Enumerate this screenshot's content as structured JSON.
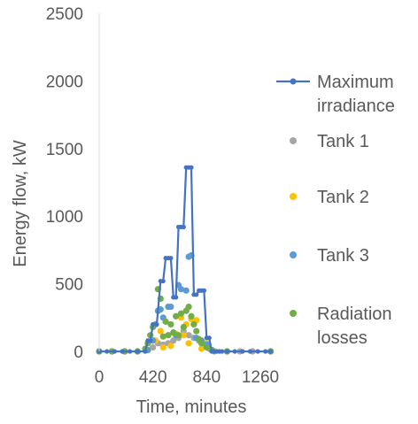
{
  "chart_data": {
    "type": "scatter",
    "title": "",
    "xlabel": "Time, minutes",
    "ylabel": "Energy flow, kW",
    "xlim": [
      0,
      1440
    ],
    "ylim": [
      0,
      2500
    ],
    "xticks": [
      0,
      420,
      840,
      1260
    ],
    "yticks": [
      0,
      500,
      1000,
      1500,
      2000,
      2500
    ],
    "x_tick_labels": [
      "0",
      "420",
      "840",
      "1260"
    ],
    "y_tick_labels": [
      "0",
      "500",
      "1000",
      "1500",
      "2000",
      "2500"
    ],
    "grid": false,
    "legend_position": "right",
    "series": [
      {
        "name": "Maximum irradiance",
        "marker": "line-with-markers",
        "color": "#4472C4",
        "x": [
          0,
          60,
          120,
          180,
          240,
          300,
          360,
          380,
          400,
          420,
          450,
          480,
          500,
          520,
          540,
          560,
          580,
          600,
          620,
          640,
          660,
          680,
          700,
          720,
          740,
          760,
          780,
          800,
          820,
          840,
          860,
          880,
          900,
          920,
          940,
          960,
          1000,
          1060,
          1120,
          1180,
          1240,
          1300,
          1340
        ],
        "y": [
          0,
          0,
          0,
          0,
          0,
          0,
          0,
          80,
          80,
          200,
          200,
          520,
          520,
          690,
          690,
          690,
          400,
          400,
          920,
          920,
          920,
          1360,
          1360,
          1360,
          420,
          420,
          450,
          450,
          450,
          100,
          100,
          0,
          0,
          0,
          0,
          0,
          0,
          0,
          0,
          0,
          0,
          0,
          0
        ]
      },
      {
        "name": "Tank 1",
        "marker": "circle",
        "color": "#A5A5A5",
        "x": [
          0,
          100,
          200,
          300,
          380,
          420,
          460,
          500,
          540,
          580,
          620,
          660,
          700,
          740,
          780,
          820,
          860,
          900,
          1000,
          1100,
          1200,
          1340
        ],
        "y": [
          0,
          0,
          0,
          0,
          10,
          30,
          60,
          50,
          60,
          80,
          100,
          150,
          120,
          100,
          80,
          60,
          20,
          0,
          0,
          0,
          0,
          0
        ]
      },
      {
        "name": "Tank 2",
        "marker": "circle",
        "color": "#FFC000",
        "x": [
          0,
          100,
          200,
          300,
          380,
          440,
          480,
          500,
          540,
          560,
          600,
          640,
          660,
          680,
          700,
          720,
          760,
          780,
          800,
          840,
          880,
          1000,
          1340
        ],
        "y": [
          0,
          0,
          0,
          0,
          10,
          80,
          150,
          30,
          120,
          40,
          130,
          250,
          120,
          200,
          60,
          240,
          230,
          90,
          20,
          60,
          10,
          0,
          0
        ]
      },
      {
        "name": "Tank 3",
        "marker": "circle",
        "color": "#5B9BD5",
        "x": [
          0,
          100,
          200,
          300,
          380,
          420,
          460,
          480,
          500,
          540,
          560,
          600,
          620,
          640,
          680,
          700,
          720,
          760,
          800,
          840,
          880,
          1000,
          1340
        ],
        "y": [
          0,
          0,
          0,
          0,
          10,
          80,
          300,
          310,
          250,
          330,
          330,
          120,
          490,
          460,
          450,
          700,
          710,
          100,
          80,
          50,
          10,
          0,
          0
        ]
      },
      {
        "name": "Radiation losses",
        "marker": "circle",
        "color": "#70AD47",
        "x": [
          0,
          100,
          200,
          300,
          360,
          380,
          400,
          420,
          440,
          460,
          480,
          500,
          520,
          540,
          560,
          580,
          600,
          620,
          640,
          660,
          680,
          700,
          720,
          740,
          760,
          780,
          800,
          840,
          880,
          1000,
          1340
        ],
        "y": [
          0,
          0,
          0,
          0,
          20,
          60,
          120,
          180,
          200,
          460,
          390,
          110,
          220,
          120,
          200,
          140,
          260,
          120,
          280,
          180,
          300,
          330,
          260,
          200,
          150,
          90,
          60,
          30,
          10,
          0,
          0
        ]
      }
    ]
  }
}
